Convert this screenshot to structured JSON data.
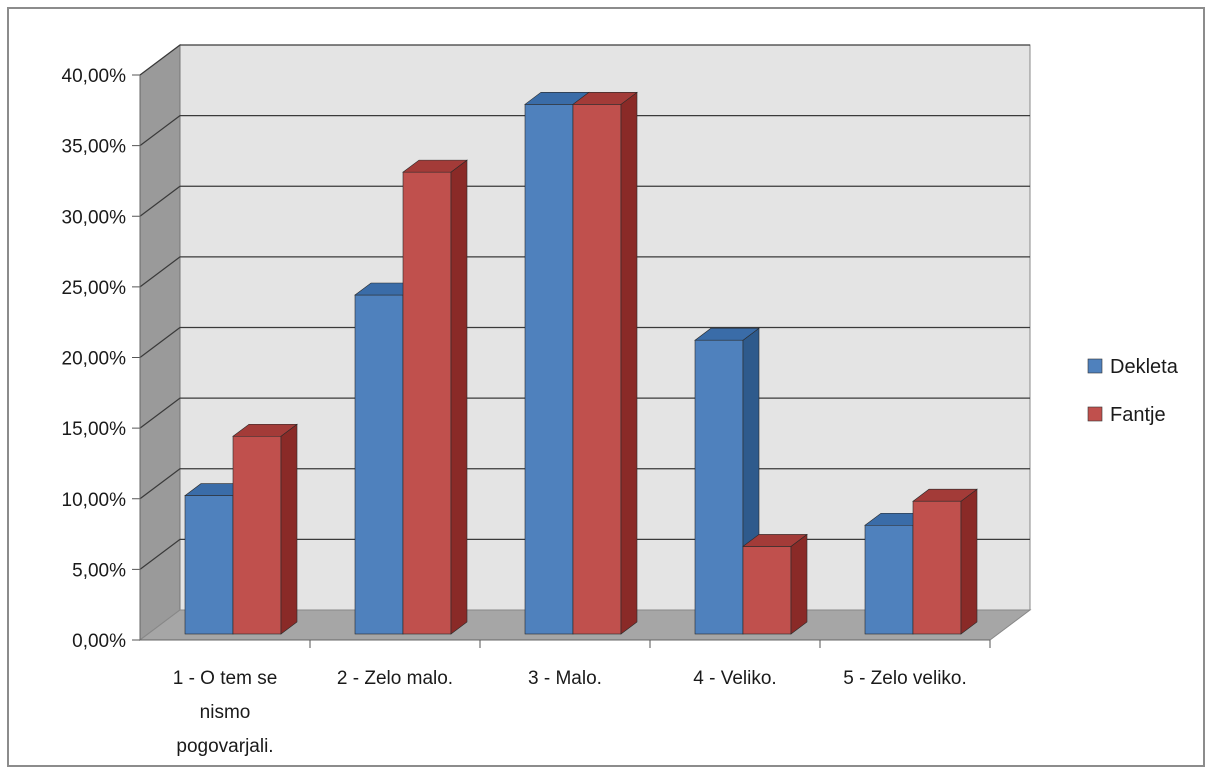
{
  "chart_data": {
    "type": "bar",
    "categories": [
      [
        "1 - O tem se",
        "nismo",
        "pogovarjali."
      ],
      [
        "2 - Zelo malo."
      ],
      [
        "3 - Malo."
      ],
      [
        "4 - Veliko."
      ],
      [
        "5 - Zelo veliko."
      ]
    ],
    "series": [
      {
        "name": "Dekleta",
        "values": [
          9.8,
          24.0,
          37.5,
          20.8,
          7.7
        ],
        "color": "#4F81BD",
        "side_color": "#2E5A8C",
        "top_color": "#3A6CA8"
      },
      {
        "name": "Fantje",
        "values": [
          14.0,
          32.7,
          37.5,
          6.2,
          9.4
        ],
        "color": "#C0504D",
        "side_color": "#8A2A27",
        "top_color": "#A33B38"
      }
    ],
    "y_ticks": [
      "0,00%",
      "5,00%",
      "10,00%",
      "15,00%",
      "20,00%",
      "25,00%",
      "30,00%",
      "35,00%",
      "40,00%"
    ],
    "ylim": [
      0,
      40
    ],
    "grid": true,
    "legend_position": "right",
    "wall_color": "#E4E4E4",
    "floor_color": "#A6A6A6",
    "side_wall_color": "#9A9A9A"
  }
}
